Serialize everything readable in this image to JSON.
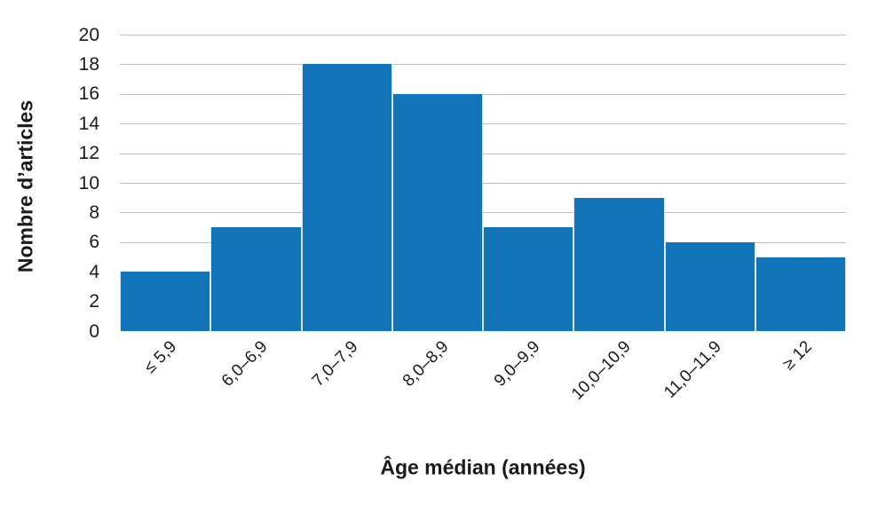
{
  "chart_data": {
    "type": "bar",
    "title": "",
    "categories": [
      "≤ 5,9",
      "6,0–6,9",
      "7,0–7,9",
      "8,0–8,9",
      "9,0–9,9",
      "10,0–10,9",
      "11,0–11,9",
      "≥ 12"
    ],
    "values": [
      4,
      7,
      18,
      16,
      7,
      9,
      6,
      5
    ],
    "xlabel": "Âge médian (années)",
    "ylabel": "Nombre d’articles",
    "ylim": [
      0,
      20
    ],
    "yticks": [
      0,
      2,
      4,
      6,
      8,
      10,
      12,
      14,
      16,
      18,
      20
    ],
    "grid": "horizontal",
    "legend": "none",
    "bar_color": "#1173b8",
    "bar_divider_color": "#d9e7f4",
    "grid_color": "#bfbfbf",
    "text_color": "#1a1a1a"
  }
}
